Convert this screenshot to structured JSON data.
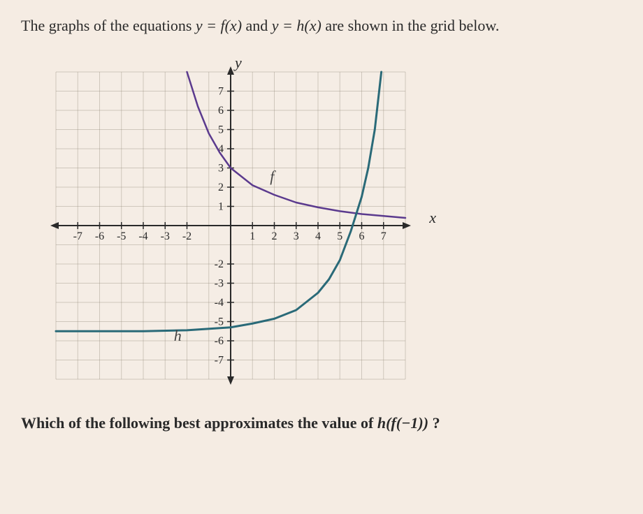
{
  "question": {
    "prefix": "The graphs of the equations ",
    "eq1": "y = f(x)",
    "mid": " and ",
    "eq2": "y = h(x)",
    "suffix": " are shown in the grid below."
  },
  "chart": {
    "type": "line",
    "xlim": [
      -8,
      8
    ],
    "ylim": [
      -8,
      8
    ],
    "xticks": [
      -7,
      -6,
      -5,
      -4,
      -3,
      -2,
      1,
      2,
      3,
      4,
      5,
      6,
      7
    ],
    "yticks": [
      -7,
      -6,
      -5,
      -4,
      -3,
      -2,
      1,
      2,
      3,
      4,
      5,
      6,
      7
    ],
    "grid_color": "#8a8070",
    "grid_opacity": 0.35,
    "axis_color": "#2a2a2a",
    "background_color": "rgba(255,255,255,0.08)",
    "label_fontsize": 16,
    "x_axis_label": "x",
    "y_axis_label": "y",
    "curves": {
      "f": {
        "label": "f",
        "color": "#5b3a8e",
        "width": 2.5,
        "label_x": 1.8,
        "label_y": 2.3,
        "points": [
          [
            -2.0,
            8.0
          ],
          [
            -1.5,
            6.2
          ],
          [
            -1.0,
            4.8
          ],
          [
            -0.5,
            3.8
          ],
          [
            0.0,
            3.0
          ],
          [
            1.0,
            2.1
          ],
          [
            2.0,
            1.6
          ],
          [
            3.0,
            1.2
          ],
          [
            4.0,
            0.95
          ],
          [
            5.0,
            0.75
          ],
          [
            6.0,
            0.6
          ],
          [
            7.0,
            0.5
          ],
          [
            8.0,
            0.4
          ]
        ]
      },
      "h": {
        "label": "h",
        "color": "#2a6a78",
        "width": 3,
        "label_x": -2.6,
        "label_y": -6.0,
        "points": [
          [
            -8.0,
            -5.5
          ],
          [
            -4.0,
            -5.5
          ],
          [
            -2.0,
            -5.45
          ],
          [
            0.0,
            -5.3
          ],
          [
            1.0,
            -5.1
          ],
          [
            2.0,
            -4.85
          ],
          [
            3.0,
            -4.4
          ],
          [
            4.0,
            -3.5
          ],
          [
            4.5,
            -2.8
          ],
          [
            5.0,
            -1.8
          ],
          [
            5.5,
            -0.3
          ],
          [
            6.0,
            1.5
          ],
          [
            6.3,
            3.0
          ],
          [
            6.6,
            5.0
          ],
          [
            6.9,
            8.0
          ]
        ]
      }
    }
  },
  "final": {
    "prefix": "Which of the following best approximates the value of ",
    "expr": "h(f(−1))",
    "suffix": "?"
  }
}
